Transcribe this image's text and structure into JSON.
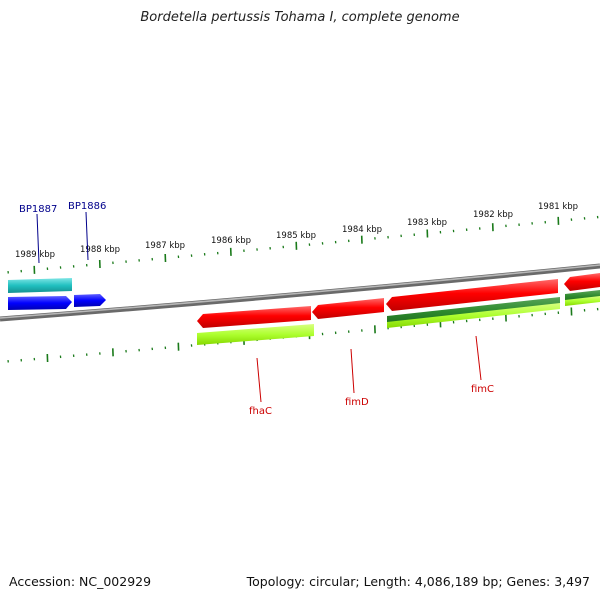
{
  "title": "Bordetella pertussis Tohama I, complete genome",
  "footer": {
    "accession": "Accession: NC_002929",
    "summary": "Topology: circular; Length: 4,086,189 bp; Genes: 3,497"
  },
  "scale_labels": [
    "1989 kbp",
    "1988 kbp",
    "1987 kbp",
    "1986 kbp",
    "1985 kbp",
    "1984 kbp",
    "1983 kbp",
    "1982 kbp",
    "1981 kbp"
  ],
  "genes_top": [
    {
      "label": "BP1887",
      "color": "#00008b"
    },
    {
      "label": "BP1886",
      "color": "#00008b"
    }
  ],
  "genes_bottom": [
    {
      "label": "fhaC",
      "color": "#cc0000"
    },
    {
      "label": "fimD",
      "color": "#cc0000"
    },
    {
      "label": "fimC",
      "color": "#cc0000"
    }
  ],
  "colors": {
    "cds": "#ff0000",
    "gene_green": "#2e8b2e",
    "gene_lime": "#adff2f",
    "cyan": "#20c0c0",
    "blue": "#0000ff",
    "backbone": "#808080",
    "tick": "#1a7a1a"
  }
}
